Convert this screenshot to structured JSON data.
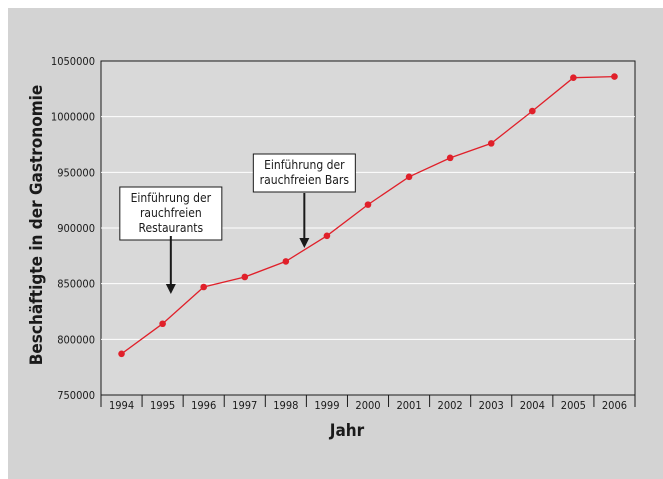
{
  "chart_data": {
    "type": "line",
    "title": "",
    "xlabel": "Jahr",
    "ylabel": "Beschäftigte in der Gastronomie",
    "x": [
      "1994",
      "1995",
      "1996",
      "1997",
      "1998",
      "1999",
      "2000",
      "2001",
      "2002",
      "2003",
      "2004",
      "2005",
      "2006"
    ],
    "series": [
      {
        "name": "",
        "values": [
          787000,
          814000,
          847000,
          856000,
          870000,
          893000,
          921000,
          946000,
          963000,
          976000,
          1005000,
          1035000,
          1036000
        ],
        "color": "#e0202a"
      }
    ],
    "ylim": [
      750000,
      1050000
    ],
    "yticks": [
      "750000",
      "800000",
      "850000",
      "900000",
      "950000",
      "1000000",
      "1050000"
    ],
    "grid": "horizontal",
    "plot_background": "#d9d9d9",
    "annotations": [
      {
        "lines": [
          "Einführung der",
          "rauchfreien",
          "Restaurants"
        ],
        "x_position": 1.2
      },
      {
        "lines": [
          "Einführung der",
          "rauchfreien Bars"
        ],
        "x_position": 4.45
      }
    ]
  }
}
